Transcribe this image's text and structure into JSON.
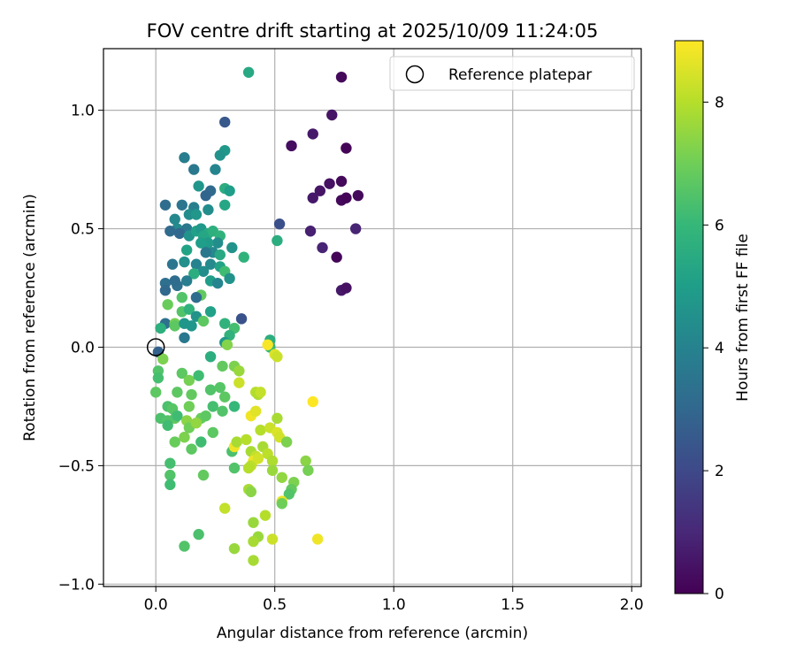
{
  "chart_data": {
    "type": "scatter",
    "title": "FOV centre drift starting at 2025/10/09 11:24:05",
    "xlabel": "Angular distance from reference (arcmin)",
    "ylabel": "Rotation from reference (arcmin)",
    "xlim": [
      -0.22,
      2.04
    ],
    "ylim": [
      -1.01,
      1.26
    ],
    "x_ticks": [
      0.0,
      0.5,
      1.0,
      1.5,
      2.0
    ],
    "x_tick_labels": [
      "0.0",
      "0.5",
      "1.0",
      "1.5",
      "2.0"
    ],
    "y_ticks": [
      -1.0,
      -0.5,
      0.0,
      0.5,
      1.0
    ],
    "y_tick_labels": [
      "−1.0",
      "−0.5",
      "0.0",
      "0.5",
      "1.0"
    ],
    "grid": true,
    "legend": {
      "position": "top-right",
      "label": "Reference platepar"
    },
    "reference_point": {
      "x": 0.0,
      "y": 0.0
    },
    "colorbar": {
      "label": "Hours from first FF file",
      "range": [
        0,
        9
      ],
      "ticks": [
        0,
        2,
        4,
        6,
        8
      ],
      "tick_labels": [
        "0",
        "2",
        "4",
        "6",
        "8"
      ],
      "colormap": "viridis"
    },
    "colormap_stops": [
      "#440154",
      "#482878",
      "#3e4989",
      "#31688e",
      "#26828e",
      "#1f9e89",
      "#35b779",
      "#6ece58",
      "#b5de2b",
      "#fde725"
    ],
    "points": [
      [
        0.78,
        1.14,
        0.2
      ],
      [
        0.74,
        0.98,
        0.5
      ],
      [
        0.66,
        0.9,
        0.6
      ],
      [
        0.57,
        0.85,
        0.3
      ],
      [
        0.8,
        0.84,
        0.1
      ],
      [
        0.78,
        0.7,
        0.2
      ],
      [
        0.73,
        0.69,
        0.4
      ],
      [
        0.69,
        0.66,
        0.5
      ],
      [
        0.66,
        0.63,
        0.6
      ],
      [
        0.78,
        0.62,
        0.2
      ],
      [
        0.8,
        0.63,
        0.1
      ],
      [
        0.85,
        0.64,
        0.2
      ],
      [
        0.84,
        0.5,
        0.9
      ],
      [
        0.65,
        0.49,
        0.8
      ],
      [
        0.7,
        0.42,
        0.9
      ],
      [
        0.76,
        0.38,
        0.1
      ],
      [
        0.78,
        0.24,
        0.6
      ],
      [
        0.8,
        0.25,
        0.4
      ],
      [
        0.52,
        0.52,
        2.2
      ],
      [
        0.51,
        0.45,
        5.6
      ],
      [
        0.39,
        1.16,
        5.4
      ],
      [
        0.29,
        0.95,
        2.5
      ],
      [
        0.29,
        0.83,
        4.8
      ],
      [
        0.27,
        0.81,
        4.6
      ],
      [
        0.12,
        0.8,
        3.8
      ],
      [
        0.16,
        0.75,
        3.6
      ],
      [
        0.25,
        0.75,
        4.1
      ],
      [
        0.18,
        0.68,
        4.7
      ],
      [
        0.29,
        0.67,
        5.6
      ],
      [
        0.31,
        0.66,
        5.0
      ],
      [
        0.23,
        0.66,
        3.1
      ],
      [
        0.21,
        0.64,
        2.9
      ],
      [
        0.04,
        0.6,
        3.2
      ],
      [
        0.11,
        0.6,
        3.5
      ],
      [
        0.16,
        0.59,
        3.9
      ],
      [
        0.22,
        0.58,
        4.4
      ],
      [
        0.29,
        0.6,
        5.3
      ],
      [
        0.14,
        0.56,
        4.4
      ],
      [
        0.17,
        0.56,
        4.7
      ],
      [
        0.08,
        0.54,
        4.2
      ],
      [
        0.09,
        0.5,
        4.3
      ],
      [
        0.13,
        0.5,
        3.6
      ],
      [
        0.06,
        0.49,
        3.1
      ],
      [
        0.1,
        0.48,
        3.0
      ],
      [
        0.14,
        0.47,
        4.6
      ],
      [
        0.17,
        0.49,
        5.1
      ],
      [
        0.19,
        0.5,
        4.8
      ],
      [
        0.22,
        0.48,
        5.5
      ],
      [
        0.2,
        0.47,
        5.3
      ],
      [
        0.24,
        0.49,
        5.7
      ],
      [
        0.27,
        0.47,
        5.8
      ],
      [
        0.26,
        0.44,
        4.4
      ],
      [
        0.22,
        0.44,
        4.9
      ],
      [
        0.19,
        0.44,
        5.0
      ],
      [
        0.13,
        0.41,
        5.2
      ],
      [
        0.24,
        0.4,
        4.2
      ],
      [
        0.21,
        0.4,
        3.6
      ],
      [
        0.32,
        0.42,
        4.6
      ],
      [
        0.27,
        0.39,
        5.4
      ],
      [
        0.37,
        0.38,
        5.8
      ],
      [
        0.07,
        0.35,
        3.5
      ],
      [
        0.12,
        0.36,
        4.5
      ],
      [
        0.17,
        0.35,
        4.0
      ],
      [
        0.23,
        0.35,
        4.3
      ],
      [
        0.27,
        0.34,
        5.2
      ],
      [
        0.29,
        0.32,
        6.2
      ],
      [
        0.2,
        0.32,
        4.4
      ],
      [
        0.16,
        0.31,
        5.6
      ],
      [
        0.04,
        0.27,
        3.3
      ],
      [
        0.04,
        0.24,
        3.0
      ],
      [
        0.09,
        0.26,
        3.3
      ],
      [
        0.13,
        0.28,
        3.8
      ],
      [
        0.08,
        0.28,
        3.2
      ],
      [
        0.23,
        0.28,
        5.0
      ],
      [
        0.26,
        0.27,
        4.1
      ],
      [
        0.31,
        0.29,
        4.6
      ],
      [
        0.19,
        0.22,
        6.8
      ],
      [
        0.17,
        0.21,
        3.2
      ],
      [
        0.11,
        0.21,
        6.5
      ],
      [
        0.05,
        0.18,
        6.9
      ],
      [
        0.11,
        0.15,
        6.5
      ],
      [
        0.14,
        0.16,
        5.8
      ],
      [
        0.17,
        0.13,
        4.6
      ],
      [
        0.23,
        0.15,
        5.1
      ],
      [
        0.04,
        0.1,
        3.3
      ],
      [
        0.08,
        0.1,
        7.1
      ],
      [
        0.08,
        0.09,
        6.7
      ],
      [
        0.12,
        0.1,
        4.7
      ],
      [
        0.15,
        0.09,
        4.7
      ],
      [
        0.2,
        0.11,
        6.7
      ],
      [
        0.29,
        0.1,
        5.8
      ],
      [
        0.33,
        0.08,
        6.3
      ],
      [
        0.36,
        0.12,
        2.3
      ],
      [
        0.02,
        0.08,
        5.7
      ],
      [
        0.31,
        0.05,
        5.8
      ],
      [
        0.12,
        0.04,
        3.6
      ],
      [
        0.29,
        0.02,
        4.8
      ],
      [
        0.3,
        0.01,
        7.3
      ],
      [
        0.48,
        0.03,
        5.6
      ],
      [
        0.48,
        0.0,
        6.0
      ],
      [
        0.01,
        -0.02,
        2.8
      ],
      [
        0.03,
        -0.05,
        7.2
      ],
      [
        0.23,
        -0.04,
        5.6
      ],
      [
        0.01,
        -0.1,
        6.5
      ],
      [
        0.01,
        -0.13,
        6.3
      ],
      [
        0.11,
        -0.11,
        6.7
      ],
      [
        0.14,
        -0.14,
        7.1
      ],
      [
        0.18,
        -0.12,
        6.2
      ],
      [
        0.28,
        -0.08,
        6.8
      ],
      [
        0.33,
        -0.08,
        7.2
      ],
      [
        0.35,
        -0.1,
        7.6
      ],
      [
        0.47,
        0.01,
        8.9
      ],
      [
        0.5,
        -0.03,
        8.5
      ],
      [
        0.51,
        -0.04,
        8.3
      ],
      [
        0.35,
        -0.15,
        8.3
      ],
      [
        0.0,
        -0.19,
        6.7
      ],
      [
        0.09,
        -0.19,
        6.7
      ],
      [
        0.15,
        -0.2,
        6.8
      ],
      [
        0.23,
        -0.18,
        6.5
      ],
      [
        0.27,
        -0.17,
        6.6
      ],
      [
        0.29,
        -0.21,
        6.7
      ],
      [
        0.42,
        -0.19,
        8.0
      ],
      [
        0.43,
        -0.2,
        7.9
      ],
      [
        0.44,
        -0.19,
        8.2
      ],
      [
        0.02,
        -0.3,
        6.4
      ],
      [
        0.05,
        -0.25,
        6.4
      ],
      [
        0.07,
        -0.26,
        6.6
      ],
      [
        0.08,
        -0.3,
        6.8
      ],
      [
        0.05,
        -0.31,
        6.5
      ],
      [
        0.09,
        -0.29,
        6.2
      ],
      [
        0.14,
        -0.25,
        7.0
      ],
      [
        0.19,
        -0.3,
        6.9
      ],
      [
        0.21,
        -0.29,
        6.7
      ],
      [
        0.24,
        -0.25,
        6.3
      ],
      [
        0.28,
        -0.27,
        6.5
      ],
      [
        0.33,
        -0.25,
        6.0
      ],
      [
        0.4,
        -0.29,
        8.8
      ],
      [
        0.42,
        -0.27,
        8.6
      ],
      [
        0.44,
        -0.35,
        8.0
      ],
      [
        0.48,
        -0.34,
        8.3
      ],
      [
        0.51,
        -0.3,
        7.8
      ],
      [
        0.51,
        -0.36,
        8.5
      ],
      [
        0.52,
        -0.38,
        8.4
      ],
      [
        0.55,
        -0.4,
        7.2
      ],
      [
        0.66,
        -0.23,
        9.0
      ],
      [
        0.05,
        -0.33,
        6.2
      ],
      [
        0.08,
        -0.4,
        6.9
      ],
      [
        0.12,
        -0.38,
        7.2
      ],
      [
        0.13,
        -0.31,
        7.4
      ],
      [
        0.14,
        -0.34,
        7.0
      ],
      [
        0.17,
        -0.32,
        7.5
      ],
      [
        0.19,
        -0.4,
        6.2
      ],
      [
        0.24,
        -0.36,
        6.7
      ],
      [
        0.32,
        -0.44,
        6.4
      ],
      [
        0.33,
        -0.42,
        8.8
      ],
      [
        0.34,
        -0.4,
        7.8
      ],
      [
        0.38,
        -0.39,
        8.0
      ],
      [
        0.4,
        -0.44,
        7.8
      ],
      [
        0.42,
        -0.46,
        8.2
      ],
      [
        0.45,
        -0.42,
        7.8
      ],
      [
        0.47,
        -0.45,
        8.1
      ],
      [
        0.49,
        -0.48,
        7.9
      ],
      [
        0.41,
        -0.48,
        8.8
      ],
      [
        0.4,
        -0.5,
        8.1
      ],
      [
        0.43,
        -0.47,
        8.4
      ],
      [
        0.06,
        -0.49,
        6.3
      ],
      [
        0.06,
        -0.54,
        6.5
      ],
      [
        0.06,
        -0.58,
        6.2
      ],
      [
        0.15,
        -0.43,
        6.7
      ],
      [
        0.2,
        -0.54,
        6.8
      ],
      [
        0.33,
        -0.51,
        6.5
      ],
      [
        0.39,
        -0.51,
        8.0
      ],
      [
        0.49,
        -0.52,
        7.6
      ],
      [
        0.53,
        -0.55,
        7.5
      ],
      [
        0.63,
        -0.48,
        7.4
      ],
      [
        0.64,
        -0.52,
        7.1
      ],
      [
        0.58,
        -0.57,
        7.2
      ],
      [
        0.57,
        -0.6,
        6.8
      ],
      [
        0.56,
        -0.62,
        6.5
      ],
      [
        0.39,
        -0.6,
        7.8
      ],
      [
        0.4,
        -0.61,
        7.4
      ],
      [
        0.53,
        -0.65,
        8.7
      ],
      [
        0.53,
        -0.66,
        7.0
      ],
      [
        0.29,
        -0.68,
        8.2
      ],
      [
        0.46,
        -0.71,
        8.0
      ],
      [
        0.41,
        -0.74,
        7.6
      ],
      [
        0.18,
        -0.79,
        6.4
      ],
      [
        0.12,
        -0.84,
        6.5
      ],
      [
        0.43,
        -0.8,
        7.6
      ],
      [
        0.49,
        -0.81,
        8.3
      ],
      [
        0.41,
        -0.82,
        7.8
      ],
      [
        0.68,
        -0.81,
        8.8
      ],
      [
        0.33,
        -0.85,
        7.6
      ],
      [
        0.41,
        -0.9,
        7.8
      ]
    ]
  }
}
